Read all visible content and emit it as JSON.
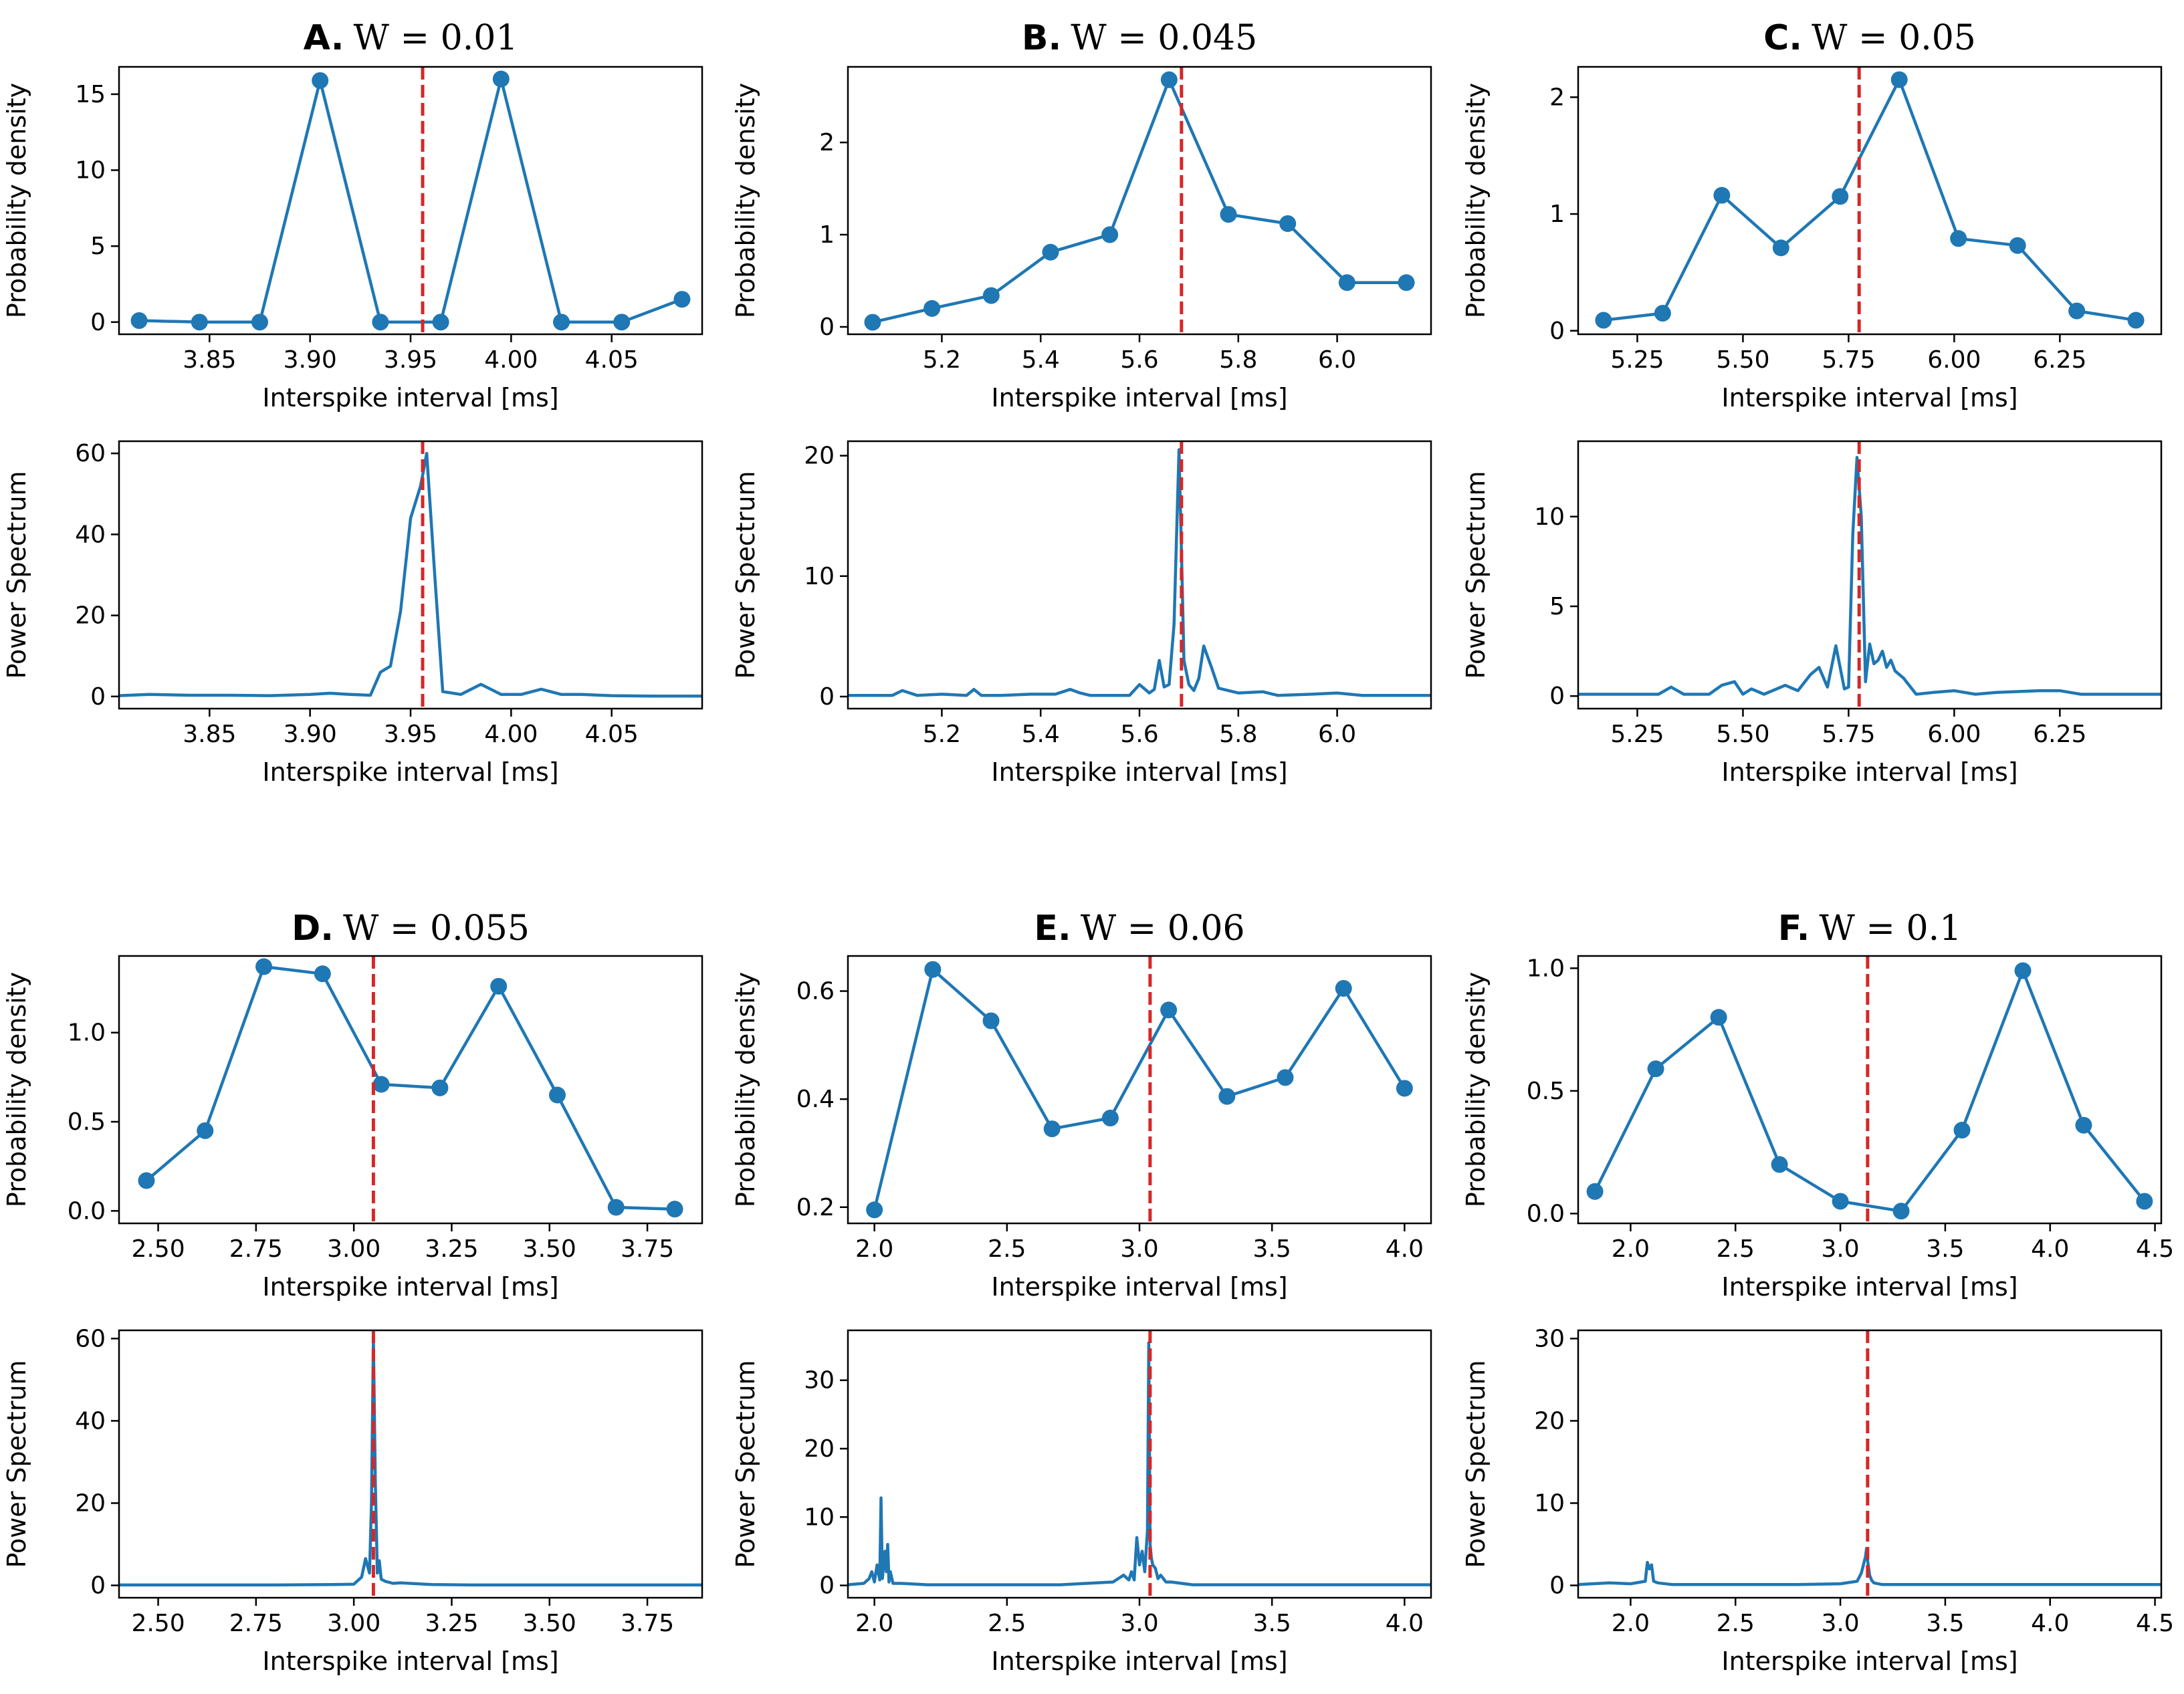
{
  "figure": {
    "xlabel": "Interspike interval [ms]",
    "ylabel_top": "Probability density",
    "ylabel_bottom": "Power Spectrum",
    "colors": {
      "series": "#1f77b4",
      "reference": "#d62728",
      "axes": "#000000"
    }
  },
  "chart_data": [
    {
      "panel": "A",
      "letter": "A.",
      "title": "W = 0.01",
      "hist": {
        "type": "line",
        "markers": true,
        "x": [
          3.815,
          3.845,
          3.875,
          3.905,
          3.935,
          3.965,
          3.995,
          4.025,
          4.055,
          4.085
        ],
        "y": [
          0.1,
          0.0,
          0.0,
          15.9,
          0.0,
          0.0,
          16.0,
          0.0,
          0.0,
          1.5
        ],
        "xlim": [
          3.805,
          4.095
        ],
        "ylim": [
          -0.8,
          16.8
        ],
        "xticks": [
          3.85,
          3.9,
          3.95,
          4.0,
          4.05
        ],
        "xtick_labels": [
          "3.85",
          "3.90",
          "3.95",
          "4.00",
          "4.05"
        ],
        "yticks": [
          0,
          5,
          10,
          15
        ],
        "ytick_labels": [
          "0",
          "5",
          "10",
          "15"
        ]
      },
      "spec": {
        "type": "line",
        "x": [
          3.805,
          3.82,
          3.84,
          3.86,
          3.88,
          3.9,
          3.91,
          3.92,
          3.93,
          3.935,
          3.94,
          3.945,
          3.95,
          3.955,
          3.958,
          3.962,
          3.966,
          3.975,
          3.985,
          3.995,
          4.005,
          4.015,
          4.025,
          4.035,
          4.05,
          4.07,
          4.095
        ],
        "y": [
          0.2,
          0.5,
          0.3,
          0.3,
          0.2,
          0.5,
          0.8,
          0.5,
          0.3,
          6,
          7.5,
          21,
          44,
          52,
          60,
          30,
          1.2,
          0.5,
          3,
          0.5,
          0.5,
          1.8,
          0.5,
          0.5,
          0.2,
          0.1,
          0.1
        ],
        "xlim": [
          3.805,
          4.095
        ],
        "ylim": [
          -3,
          63
        ],
        "xticks": [
          3.85,
          3.9,
          3.95,
          4.0,
          4.05
        ],
        "xtick_labels": [
          "3.85",
          "3.90",
          "3.95",
          "4.00",
          "4.05"
        ],
        "yticks": [
          0,
          20,
          40,
          60
        ],
        "ytick_labels": [
          "0",
          "20",
          "40",
          "60"
        ]
      },
      "ref_x": 3.956
    },
    {
      "panel": "B",
      "letter": "B.",
      "title": "W = 0.045",
      "hist": {
        "type": "line",
        "markers": true,
        "x": [
          5.06,
          5.18,
          5.3,
          5.42,
          5.54,
          5.66,
          5.78,
          5.9,
          6.02,
          6.14
        ],
        "y": [
          0.05,
          0.2,
          0.34,
          0.81,
          1.0,
          2.68,
          1.22,
          1.12,
          0.48,
          0.48
        ],
        "xlim": [
          5.01,
          6.19
        ],
        "ylim": [
          -0.08,
          2.82
        ],
        "xticks": [
          5.2,
          5.4,
          5.6,
          5.8,
          6.0
        ],
        "xtick_labels": [
          "5.2",
          "5.4",
          "5.6",
          "5.8",
          "6.0"
        ],
        "yticks": [
          0,
          1,
          2
        ],
        "ytick_labels": [
          "0",
          "1",
          "2"
        ]
      },
      "spec": {
        "type": "line",
        "x": [
          5.01,
          5.05,
          5.1,
          5.12,
          5.15,
          5.2,
          5.25,
          5.265,
          5.28,
          5.32,
          5.38,
          5.43,
          5.46,
          5.48,
          5.5,
          5.55,
          5.58,
          5.6,
          5.62,
          5.63,
          5.64,
          5.65,
          5.66,
          5.67,
          5.68,
          5.685,
          5.69,
          5.7,
          5.71,
          5.72,
          5.73,
          5.745,
          5.76,
          5.8,
          5.85,
          5.88,
          5.95,
          6.0,
          6.05,
          6.1,
          6.19
        ],
        "y": [
          0.1,
          0.1,
          0.1,
          0.5,
          0.1,
          0.2,
          0.1,
          0.6,
          0.1,
          0.1,
          0.2,
          0.2,
          0.6,
          0.3,
          0.1,
          0.1,
          0.1,
          1.0,
          0.3,
          0.6,
          3.0,
          0.8,
          1.0,
          6.0,
          20.5,
          12.0,
          3.0,
          1.0,
          0.5,
          1.5,
          4.2,
          2.5,
          0.7,
          0.3,
          0.4,
          0.1,
          0.2,
          0.3,
          0.1,
          0.1,
          0.1
        ],
        "xlim": [
          5.01,
          6.19
        ],
        "ylim": [
          -1,
          21.2
        ],
        "xticks": [
          5.2,
          5.4,
          5.6,
          5.8,
          6.0
        ],
        "xtick_labels": [
          "5.2",
          "5.4",
          "5.6",
          "5.8",
          "6.0"
        ],
        "yticks": [
          0,
          10,
          20
        ],
        "ytick_labels": [
          "0",
          "10",
          "20"
        ]
      },
      "ref_x": 5.685
    },
    {
      "panel": "C",
      "letter": "C.",
      "title": "W = 0.05",
      "hist": {
        "type": "line",
        "markers": true,
        "x": [
          5.17,
          5.31,
          5.45,
          5.59,
          5.73,
          5.87,
          6.01,
          6.15,
          6.29,
          6.43
        ],
        "y": [
          0.09,
          0.15,
          1.16,
          0.71,
          1.15,
          2.15,
          0.79,
          0.73,
          0.17,
          0.09
        ],
        "xlim": [
          5.11,
          6.49
        ],
        "ylim": [
          -0.03,
          2.26
        ],
        "xticks": [
          5.25,
          5.5,
          5.75,
          6.0,
          6.25
        ],
        "xtick_labels": [
          "5.25",
          "5.50",
          "5.75",
          "6.00",
          "6.25"
        ],
        "yticks": [
          0,
          1,
          2
        ],
        "ytick_labels": [
          "0",
          "1",
          "2"
        ]
      },
      "spec": {
        "type": "line",
        "x": [
          5.11,
          5.2,
          5.3,
          5.33,
          5.36,
          5.42,
          5.45,
          5.48,
          5.5,
          5.52,
          5.55,
          5.6,
          5.63,
          5.66,
          5.68,
          5.7,
          5.72,
          5.74,
          5.75,
          5.76,
          5.77,
          5.78,
          5.79,
          5.8,
          5.81,
          5.82,
          5.83,
          5.84,
          5.85,
          5.86,
          5.88,
          5.91,
          5.95,
          6.0,
          6.05,
          6.1,
          6.2,
          6.25,
          6.3,
          6.4,
          6.49
        ],
        "y": [
          0.1,
          0.1,
          0.1,
          0.5,
          0.1,
          0.1,
          0.6,
          0.8,
          0.1,
          0.4,
          0.1,
          0.6,
          0.3,
          1.2,
          1.6,
          0.5,
          2.8,
          0.4,
          0.5,
          9.0,
          13.3,
          10.0,
          0.8,
          2.9,
          1.8,
          2.0,
          2.5,
          1.6,
          2.0,
          1.4,
          1.0,
          0.1,
          0.2,
          0.3,
          0.1,
          0.2,
          0.3,
          0.3,
          0.1,
          0.1,
          0.1
        ],
        "xlim": [
          5.11,
          6.49
        ],
        "ylim": [
          -0.7,
          14.2
        ],
        "xticks": [
          5.25,
          5.5,
          5.75,
          6.0,
          6.25
        ],
        "xtick_labels": [
          "5.25",
          "5.50",
          "5.75",
          "6.00",
          "6.25"
        ],
        "yticks": [
          0,
          5,
          10
        ],
        "ytick_labels": [
          "0",
          "5",
          "10"
        ]
      },
      "ref_x": 5.775
    },
    {
      "panel": "D",
      "letter": "D.",
      "title": "W = 0.055",
      "hist": {
        "type": "line",
        "markers": true,
        "x": [
          2.47,
          2.62,
          2.77,
          2.92,
          3.07,
          3.22,
          3.37,
          3.52,
          3.67,
          3.82
        ],
        "y": [
          0.17,
          0.45,
          1.37,
          1.33,
          0.71,
          0.69,
          1.26,
          0.65,
          0.02,
          0.01
        ],
        "xlim": [
          2.4,
          3.89
        ],
        "ylim": [
          -0.07,
          1.43
        ],
        "xticks": [
          2.5,
          2.75,
          3.0,
          3.25,
          3.5,
          3.75
        ],
        "xtick_labels": [
          "2.50",
          "2.75",
          "3.00",
          "3.25",
          "3.50",
          "3.75"
        ],
        "yticks": [
          0.0,
          0.5,
          1.0
        ],
        "ytick_labels": [
          "0.0",
          "0.5",
          "1.0"
        ]
      },
      "spec": {
        "type": "line",
        "x": [
          2.4,
          2.6,
          2.8,
          2.95,
          3.0,
          3.02,
          3.03,
          3.04,
          3.045,
          3.05,
          3.055,
          3.06,
          3.065,
          3.07,
          3.08,
          3.1,
          3.12,
          3.2,
          3.3,
          3.5,
          3.89
        ],
        "y": [
          0.1,
          0.1,
          0.1,
          0.2,
          0.3,
          2.0,
          6.5,
          3.0,
          20.0,
          60.0,
          25.0,
          3.0,
          6.0,
          1.5,
          1.0,
          0.5,
          0.6,
          0.2,
          0.1,
          0.1,
          0.1
        ],
        "xlim": [
          2.4,
          3.89
        ],
        "ylim": [
          -3,
          62
        ],
        "xticks": [
          2.5,
          2.75,
          3.0,
          3.25,
          3.5,
          3.75
        ],
        "xtick_labels": [
          "2.50",
          "2.75",
          "3.00",
          "3.25",
          "3.50",
          "3.75"
        ],
        "yticks": [
          0,
          20,
          40,
          60
        ],
        "ytick_labels": [
          "0",
          "20",
          "40",
          "60"
        ]
      },
      "ref_x": 3.05
    },
    {
      "panel": "E",
      "letter": "E.",
      "title": "W = 0.06",
      "hist": {
        "type": "line",
        "markers": true,
        "x": [
          2.0,
          2.22,
          2.44,
          2.67,
          2.89,
          3.11,
          3.33,
          3.55,
          3.77,
          4.0
        ],
        "y": [
          0.195,
          0.64,
          0.545,
          0.345,
          0.365,
          0.565,
          0.405,
          0.44,
          0.605,
          0.42
        ],
        "xlim": [
          1.9,
          4.1
        ],
        "ylim": [
          0.17,
          0.665
        ],
        "xticks": [
          2.0,
          2.5,
          3.0,
          3.5,
          4.0
        ],
        "xtick_labels": [
          "2.0",
          "2.5",
          "3.0",
          "3.5",
          "4.0"
        ],
        "yticks": [
          0.2,
          0.4,
          0.6
        ],
        "ytick_labels": [
          "0.2",
          "0.4",
          "0.6"
        ]
      },
      "spec": {
        "type": "line",
        "x": [
          1.9,
          1.96,
          1.98,
          1.99,
          2.0,
          2.01,
          2.02,
          2.025,
          2.03,
          2.04,
          2.045,
          2.05,
          2.055,
          2.06,
          2.07,
          2.1,
          2.15,
          2.2,
          2.3,
          2.4,
          2.5,
          2.7,
          2.8,
          2.9,
          2.94,
          2.96,
          2.97,
          2.98,
          2.99,
          3.0,
          3.01,
          3.02,
          3.03,
          3.035,
          3.04,
          3.045,
          3.05,
          3.06,
          3.07,
          3.08,
          3.1,
          3.12,
          3.2,
          3.5,
          4.1
        ],
        "y": [
          0.1,
          0.3,
          1.0,
          2.0,
          0.5,
          3.0,
          0.8,
          12.8,
          1.0,
          5.0,
          2.0,
          6.0,
          0.5,
          2.0,
          0.3,
          0.3,
          0.2,
          0.1,
          0.1,
          0.1,
          0.1,
          0.1,
          0.3,
          0.5,
          1.5,
          0.8,
          2.0,
          0.8,
          7.0,
          3.0,
          5.0,
          2.0,
          8.0,
          35.5,
          6.0,
          4.0,
          3.0,
          2.5,
          1.0,
          1.5,
          0.5,
          0.5,
          0.1,
          0.1,
          0.1
        ],
        "xlim": [
          1.9,
          4.1
        ],
        "ylim": [
          -1.8,
          37.3
        ],
        "xticks": [
          2.0,
          2.5,
          3.0,
          3.5,
          4.0
        ],
        "xtick_labels": [
          "2.0",
          "2.5",
          "3.0",
          "3.5",
          "4.0"
        ],
        "yticks": [
          0,
          10,
          20,
          30
        ],
        "ytick_labels": [
          "0",
          "10",
          "20",
          "30"
        ]
      },
      "ref_x": 3.04
    },
    {
      "panel": "F",
      "letter": "F.",
      "title": "W = 0.1",
      "hist": {
        "type": "line",
        "markers": true,
        "x": [
          1.83,
          2.12,
          2.42,
          2.71,
          3.0,
          3.29,
          3.58,
          3.87,
          4.16,
          4.45
        ],
        "y": [
          0.09,
          0.59,
          0.8,
          0.2,
          0.05,
          0.01,
          0.34,
          0.99,
          0.36,
          0.05
        ],
        "xlim": [
          1.75,
          4.53
        ],
        "ylim": [
          -0.04,
          1.05
        ],
        "xticks": [
          2.0,
          2.5,
          3.0,
          3.5,
          4.0,
          4.5
        ],
        "xtick_labels": [
          "2.0",
          "2.5",
          "3.0",
          "3.5",
          "4.0",
          "4.5"
        ],
        "yticks": [
          0.0,
          0.5,
          1.0
        ],
        "ytick_labels": [
          "0.0",
          "0.5",
          "1.0"
        ]
      },
      "spec": {
        "type": "line",
        "x": [
          1.75,
          1.9,
          2.0,
          2.07,
          2.08,
          2.09,
          2.1,
          2.11,
          2.13,
          2.2,
          2.5,
          2.8,
          3.0,
          3.08,
          3.1,
          3.11,
          3.12,
          3.125,
          3.13,
          3.14,
          3.15,
          3.16,
          3.2,
          3.5,
          4.0,
          4.53
        ],
        "y": [
          0.1,
          0.3,
          0.2,
          0.5,
          2.8,
          2.0,
          2.5,
          0.5,
          0.3,
          0.1,
          0.1,
          0.1,
          0.2,
          0.5,
          1.5,
          2.5,
          3.5,
          4.5,
          3.0,
          1.2,
          0.6,
          0.3,
          0.1,
          0.1,
          0.1,
          0.1
        ],
        "xlim": [
          1.75,
          4.53
        ],
        "ylim": [
          -1.5,
          31
        ],
        "xticks": [
          2.0,
          2.5,
          3.0,
          3.5,
          4.0,
          4.5
        ],
        "xtick_labels": [
          "2.0",
          "2.5",
          "3.0",
          "3.5",
          "4.0",
          "4.5"
        ],
        "yticks": [
          0,
          10,
          20,
          30
        ],
        "ytick_labels": [
          "0",
          "10",
          "20",
          "30"
        ]
      },
      "ref_x": 3.13
    }
  ]
}
